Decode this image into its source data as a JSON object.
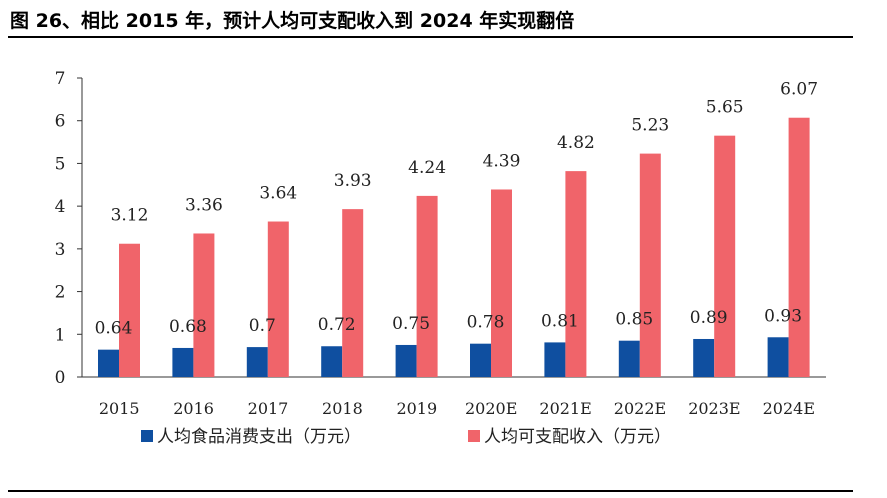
{
  "figure": {
    "title": "图 26、相比 2015 年，预计人均可支配收入到 2024 年实现翻倍"
  },
  "colors": {
    "food": "#0f4fa0",
    "income": "#f0646a",
    "axis": "#333333",
    "text": "#222222"
  },
  "chart_data": {
    "type": "bar",
    "categories": [
      "2015",
      "2016",
      "2017",
      "2018",
      "2019",
      "2020E",
      "2021E",
      "2022E",
      "2023E",
      "2024E"
    ],
    "series": [
      {
        "name": "人均食品消费支出（万元）",
        "values": [
          0.64,
          0.68,
          0.7,
          0.72,
          0.75,
          0.78,
          0.81,
          0.85,
          0.89,
          0.93
        ],
        "labels": [
          "0.64",
          "0.68",
          "0.7",
          "0.72",
          "0.75",
          "0.78",
          "0.81",
          "0.85",
          "0.89",
          "0.93"
        ]
      },
      {
        "name": "人均可支配收入（万元）",
        "values": [
          3.12,
          3.36,
          3.64,
          3.93,
          4.24,
          4.39,
          4.82,
          5.23,
          5.65,
          6.07
        ],
        "labels": [
          "3.12",
          "3.36",
          "3.64",
          "3.93",
          "4.24",
          "4.39",
          "4.82",
          "5.23",
          "5.65",
          "6.07"
        ]
      }
    ],
    "yticks": [
      "0",
      "1",
      "2",
      "3",
      "4",
      "5",
      "6",
      "7"
    ],
    "ylim": [
      0,
      7
    ],
    "grid": false,
    "legend_position": "bottom"
  }
}
